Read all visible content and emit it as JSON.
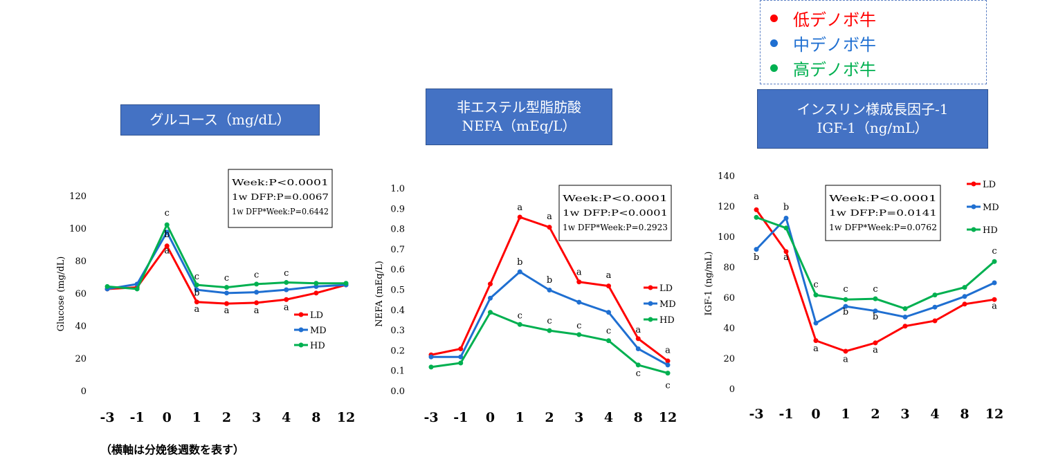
{
  "legend_top": [
    {
      "label": "低デノボ牛",
      "color": "#ff0000"
    },
    {
      "label": "中デノボ牛",
      "color": "#1f6fd1"
    },
    {
      "label": "高デノボ牛",
      "color": "#00b050"
    }
  ],
  "footnote": "（横軸は分娩後週数を表す）",
  "colors": {
    "LD": "#ff0000",
    "MD": "#1f6fd1",
    "HD": "#00b050",
    "title_bg": "#4472c4"
  },
  "chart_data": [
    {
      "type": "line",
      "title_lines": [
        "グルコース（mg/dL）"
      ],
      "ylabel": "Glucose (mg/dL)",
      "categories": [
        "-3",
        "-1",
        "0",
        "1",
        "2",
        "3",
        "4",
        "8",
        "12"
      ],
      "ylim": [
        0,
        120
      ],
      "yticks": [
        "0",
        "20",
        "40",
        "60",
        "80",
        "100",
        "120"
      ],
      "stats": [
        "Week:P<0.0001",
        "1w DFP:P=0.0067",
        "1w DFP*Week:P=0.6442"
      ],
      "legend_labels": [
        "LD",
        "MD",
        "HD"
      ],
      "series": [
        {
          "name": "LD",
          "values": [
            63,
            64,
            89.5,
            55,
            54,
            54.5,
            56.5,
            60.5,
            65.5
          ]
        },
        {
          "name": "MD",
          "values": [
            63,
            66,
            98,
            62.5,
            60.5,
            61,
            62.5,
            64.5,
            65.5
          ]
        },
        {
          "name": "HD",
          "values": [
            64.5,
            63,
            102.5,
            65.5,
            64,
            66,
            67,
            66.5,
            66.5
          ]
        }
      ],
      "annotations": [
        {
          "x": 2,
          "y": 108,
          "text": "c"
        },
        {
          "x": 2,
          "y": 95,
          "text": "b"
        },
        {
          "x": 2,
          "y": 85,
          "text": "a"
        },
        {
          "x": 3,
          "y": 69,
          "text": "c"
        },
        {
          "x": 3,
          "y": 59,
          "text": "b"
        },
        {
          "x": 3,
          "y": 49,
          "text": "a"
        },
        {
          "x": 4,
          "y": 68,
          "text": "c"
        },
        {
          "x": 4,
          "y": 48,
          "text": "a"
        },
        {
          "x": 5,
          "y": 70,
          "text": "c"
        },
        {
          "x": 5,
          "y": 48,
          "text": "a"
        },
        {
          "x": 6,
          "y": 71,
          "text": "c"
        },
        {
          "x": 6,
          "y": 50,
          "text": "a"
        }
      ]
    },
    {
      "type": "line",
      "title_lines": [
        "非エステル型脂肪酸",
        "NEFA（mEq/L）"
      ],
      "ylabel": "NEFA (mEq/L)",
      "categories": [
        "-3",
        "-1",
        "0",
        "1",
        "2",
        "3",
        "4",
        "8",
        "12"
      ],
      "ylim": [
        0,
        1.0
      ],
      "yticks": [
        "0.0",
        "0.1",
        "0.2",
        "0.3",
        "0.4",
        "0.5",
        "0.6",
        "0.7",
        "0.8",
        "0.9",
        "1.0"
      ],
      "stats": [
        "Week:P<0.0001",
        "1w DFP:P<0.0001",
        "1w DFP*Week:P=0.2923"
      ],
      "legend_labels": [
        "LD",
        "MD",
        "HD"
      ],
      "series": [
        {
          "name": "LD",
          "values": [
            0.18,
            0.21,
            0.53,
            0.86,
            0.81,
            0.54,
            0.52,
            0.26,
            0.15
          ]
        },
        {
          "name": "MD",
          "values": [
            0.17,
            0.17,
            0.46,
            0.59,
            0.5,
            0.44,
            0.39,
            0.21,
            0.13
          ]
        },
        {
          "name": "HD",
          "values": [
            0.12,
            0.14,
            0.39,
            0.33,
            0.3,
            0.28,
            0.25,
            0.13,
            0.09
          ]
        }
      ],
      "annotations": [
        {
          "x": 3,
          "y": 0.895,
          "text": "a"
        },
        {
          "x": 3,
          "y": 0.625,
          "text": "b"
        },
        {
          "x": 3,
          "y": 0.36,
          "text": "c"
        },
        {
          "x": 4,
          "y": 0.85,
          "text": "a"
        },
        {
          "x": 4,
          "y": 0.535,
          "text": "b"
        },
        {
          "x": 4,
          "y": 0.335,
          "text": "c"
        },
        {
          "x": 5,
          "y": 0.575,
          "text": "a"
        },
        {
          "x": 5,
          "y": 0.31,
          "text": "c"
        },
        {
          "x": 6,
          "y": 0.56,
          "text": "a"
        },
        {
          "x": 6,
          "y": 0.285,
          "text": "c"
        },
        {
          "x": 7,
          "y": 0.29,
          "text": "a"
        },
        {
          "x": 7,
          "y": 0.075,
          "text": "c"
        },
        {
          "x": 8,
          "y": 0.19,
          "text": "a"
        },
        {
          "x": 8,
          "y": 0.015,
          "text": "c"
        }
      ]
    },
    {
      "type": "line",
      "title_lines": [
        "インスリン様成長因子-1",
        "IGF-1（ng/mL）"
      ],
      "ylabel": "IGF-1 (ng/mL)",
      "categories": [
        "-3",
        "-1",
        "0",
        "1",
        "2",
        "3",
        "4",
        "8",
        "12"
      ],
      "ylim": [
        0,
        140
      ],
      "yticks": [
        "0",
        "20",
        "40",
        "60",
        "80",
        "100",
        "120",
        "140"
      ],
      "stats": [
        "Week:P<0.0001",
        "1w DFP:P=0.0141",
        "1w DFP*Week:P=0.0762"
      ],
      "legend_labels": [
        "LD",
        "MD",
        "HD"
      ],
      "series": [
        {
          "name": "LD",
          "values": [
            118,
            90.5,
            32,
            25,
            30.5,
            41.5,
            45,
            56,
            59
          ]
        },
        {
          "name": "MD",
          "values": [
            92,
            112.5,
            43.5,
            54.5,
            51.5,
            47.5,
            54,
            61,
            70
          ]
        },
        {
          "name": "HD",
          "values": [
            113,
            106,
            62,
            59,
            59.5,
            53,
            62,
            67,
            84
          ]
        }
      ],
      "annotations": [
        {
          "x": 0,
          "y": 125,
          "text": "a"
        },
        {
          "x": 0,
          "y": 85,
          "text": "b"
        },
        {
          "x": 1,
          "y": 118,
          "text": "b"
        },
        {
          "x": 1,
          "y": 85,
          "text": "a"
        },
        {
          "x": 2,
          "y": 67,
          "text": "c"
        },
        {
          "x": 2,
          "y": 25,
          "text": "a"
        },
        {
          "x": 3,
          "y": 64,
          "text": "c"
        },
        {
          "x": 3,
          "y": 49,
          "text": "b"
        },
        {
          "x": 3,
          "y": 18,
          "text": "a"
        },
        {
          "x": 4,
          "y": 64,
          "text": "c"
        },
        {
          "x": 4,
          "y": 46,
          "text": "b"
        },
        {
          "x": 4,
          "y": 24,
          "text": "a"
        },
        {
          "x": 8,
          "y": 89,
          "text": "c"
        },
        {
          "x": 8,
          "y": 53,
          "text": "a"
        }
      ]
    }
  ]
}
